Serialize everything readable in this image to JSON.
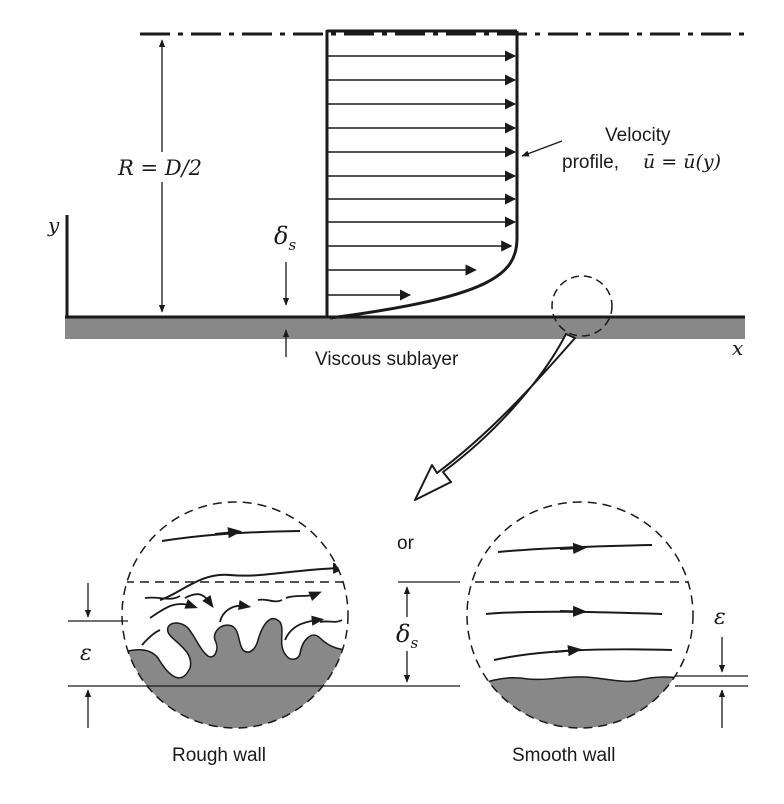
{
  "labels": {
    "radius": "R = D/2",
    "y_axis": "y",
    "x_axis": "x",
    "delta_s_top": "δ",
    "delta_s_top_sub": "s",
    "velocity_line1": "Velocity",
    "velocity_line2": "profile,",
    "velocity_eq": "ū = ū(y)",
    "viscous_sublayer": "Viscous sublayer",
    "or": "or",
    "delta_s_bottom": "δ",
    "delta_s_bottom_sub": "s",
    "epsilon_left": "ε",
    "epsilon_right": "ε",
    "rough_wall": "Rough wall",
    "smooth_wall": "Smooth wall"
  },
  "colors": {
    "wall": "#888888",
    "line": "#1a1a1a"
  }
}
